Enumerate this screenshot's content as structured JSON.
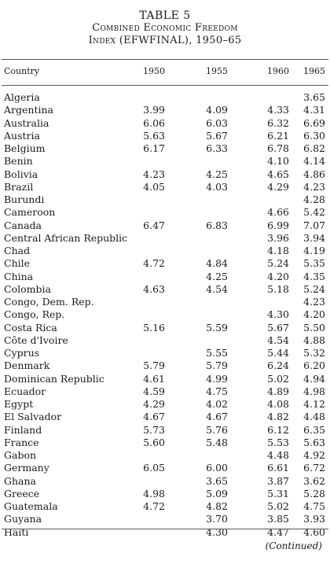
{
  "table": {
    "number": "TABLE 5",
    "title_line1": "Combined Economic Freedom",
    "title_line2": "Index (EFWFINAL), 1950–65",
    "headers": [
      "Country",
      "1950",
      "1955",
      "1960",
      "1965"
    ],
    "rows": [
      [
        "Algeria",
        "",
        "",
        "",
        "3.65"
      ],
      [
        "Argentina",
        "3.99",
        "4.09",
        "4.33",
        "4.31"
      ],
      [
        "Australia",
        "6.06",
        "6.03",
        "6.32",
        "6.69"
      ],
      [
        "Austria",
        "5.63",
        "5.67",
        "6.21",
        "6.30"
      ],
      [
        "Belgium",
        "6.17",
        "6.33",
        "6.78",
        "6.82"
      ],
      [
        "Benin",
        "",
        "",
        "4.10",
        "4.14"
      ],
      [
        "Bolivia",
        "4.23",
        "4.25",
        "4.65",
        "4.86"
      ],
      [
        "Brazil",
        "4.05",
        "4.03",
        "4.29",
        "4.23"
      ],
      [
        "Burundi",
        "",
        "",
        "",
        "4.28"
      ],
      [
        "Cameroon",
        "",
        "",
        "4.66",
        "5.42"
      ],
      [
        "Canada",
        "6.47",
        "6.83",
        "6.99",
        "7.07"
      ],
      [
        "Central African Republic",
        "",
        "",
        "3.96",
        "3.94"
      ],
      [
        "Chad",
        "",
        "",
        "4.18",
        "4.19"
      ],
      [
        "Chile",
        "4.72",
        "4.84",
        "5.24",
        "5.35"
      ],
      [
        "China",
        "",
        "4.25",
        "4.20",
        "4.35"
      ],
      [
        "Colombia",
        "4.63",
        "4.54",
        "5.18",
        "5.24"
      ],
      [
        "Congo, Dem. Rep.",
        "",
        "",
        "",
        "4.23"
      ],
      [
        "Congo, Rep.",
        "",
        "",
        "4.30",
        "4.20"
      ],
      [
        "Costa Rica",
        "5.16",
        "5.59",
        "5.67",
        "5.50"
      ],
      [
        "Côte d'Ivoire",
        "",
        "",
        "4.54",
        "4.88"
      ],
      [
        "Cyprus",
        "",
        "5.55",
        "5.44",
        "5.32"
      ],
      [
        "Denmark",
        "5.79",
        "5.79",
        "6.24",
        "6.20"
      ],
      [
        "Dominican Republic",
        "4.61",
        "4.99",
        "5.02",
        "4.94"
      ],
      [
        "Ecuador",
        "4.59",
        "4.75",
        "4.89",
        "4.98"
      ],
      [
        "Egypt",
        "4.29",
        "4.02",
        "4.08",
        "4.12"
      ],
      [
        "El Salvador",
        "4.67",
        "4.67",
        "4.82",
        "4.48"
      ],
      [
        "Finland",
        "5.73",
        "5.76",
        "6.12",
        "6.35"
      ],
      [
        "France",
        "5.60",
        "5.48",
        "5.53",
        "5.63"
      ],
      [
        "Gabon",
        "",
        "",
        "4.48",
        "4.92"
      ],
      [
        "Germany",
        "6.05",
        "6.00",
        "6.61",
        "6.72"
      ],
      [
        "Ghana",
        "",
        "3.65",
        "3.87",
        "3.62"
      ],
      [
        "Greece",
        "4.98",
        "5.09",
        "5.31",
        "5.28"
      ],
      [
        "Guatemala",
        "4.72",
        "4.82",
        "5.02",
        "4.75"
      ],
      [
        "Guyana",
        "",
        "3.70",
        "3.85",
        "3.93"
      ],
      [
        "Haiti",
        "",
        "4.30",
        "4.47",
        "4.60"
      ]
    ],
    "continued_label": "(Continued)"
  }
}
